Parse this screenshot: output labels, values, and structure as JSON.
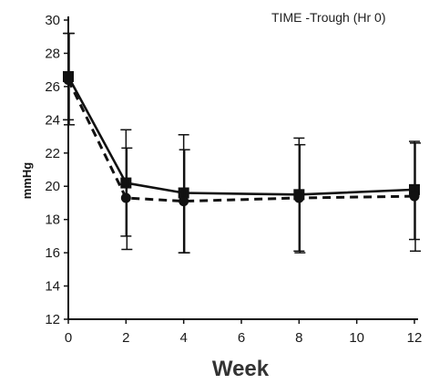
{
  "chart_data": {
    "type": "line",
    "annotation": "TIME -Trough (Hr 0)",
    "xlabel": "Week",
    "ylabel": "mmHg",
    "xlim": [
      0,
      12
    ],
    "ylim": [
      12,
      30
    ],
    "x_ticks": [
      "0",
      "2",
      "4",
      "6",
      "8",
      "10",
      "12"
    ],
    "y_ticks": [
      "12",
      "14",
      "16",
      "18",
      "20",
      "22",
      "24",
      "26",
      "28",
      "30"
    ],
    "grid": false,
    "legend": "none",
    "series": [
      {
        "style": "solid",
        "marker": "square",
        "color": "#111111",
        "points": [
          {
            "x": 0,
            "y": 26.6,
            "lo": 24.0,
            "hi": 29.2
          },
          {
            "x": 2,
            "y": 20.2,
            "lo": 17.0,
            "hi": 23.4
          },
          {
            "x": 4,
            "y": 19.6,
            "lo": 16.0,
            "hi": 23.1
          },
          {
            "x": 8,
            "y": 19.5,
            "lo": 16.1,
            "hi": 22.9
          },
          {
            "x": 12,
            "y": 19.8,
            "lo": 16.8,
            "hi": 22.7
          }
        ]
      },
      {
        "style": "dashed",
        "marker": "circle",
        "color": "#111111",
        "points": [
          {
            "x": 0,
            "y": 26.4,
            "lo": 23.7,
            "hi": 29.2
          },
          {
            "x": 2,
            "y": 19.3,
            "lo": 16.2,
            "hi": 22.3
          },
          {
            "x": 4,
            "y": 19.1,
            "lo": 16.0,
            "hi": 22.2
          },
          {
            "x": 8,
            "y": 19.3,
            "lo": 16.0,
            "hi": 22.5
          },
          {
            "x": 12,
            "y": 19.4,
            "lo": 16.1,
            "hi": 22.6
          }
        ]
      }
    ]
  }
}
